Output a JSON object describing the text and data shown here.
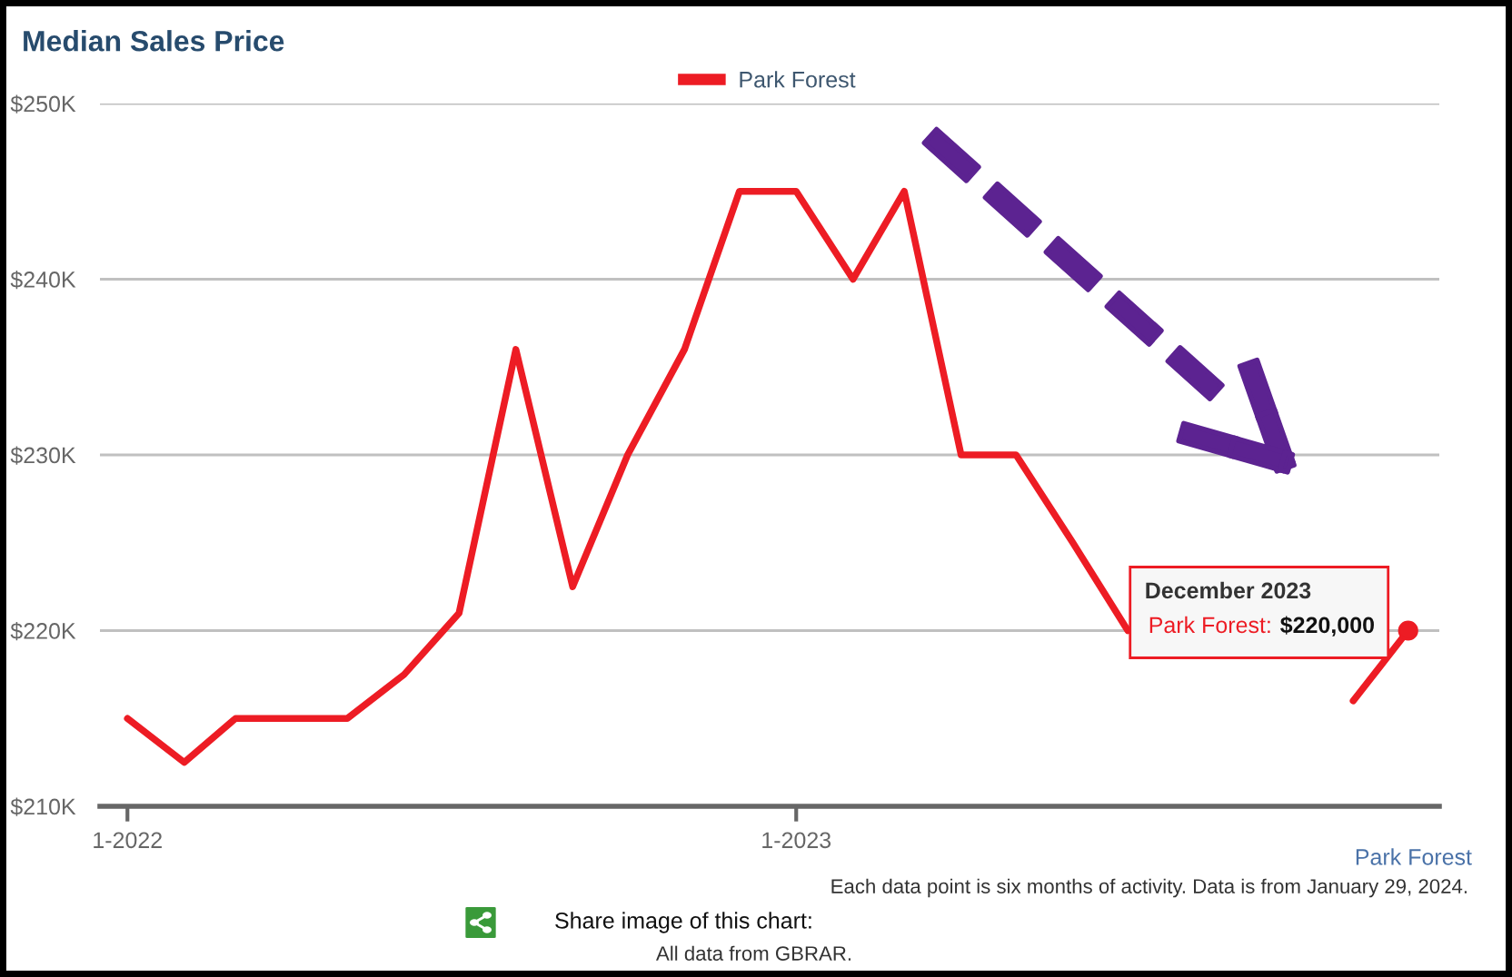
{
  "chart_data": {
    "type": "line",
    "title": "Median Sales Price",
    "x": [
      "2022-01",
      "2022-02",
      "2022-03",
      "2022-04",
      "2022-05",
      "2022-06",
      "2022-07",
      "2022-08",
      "2022-09",
      "2022-10",
      "2022-11",
      "2022-12",
      "2023-01",
      "2023-02",
      "2023-03",
      "2023-04",
      "2023-05",
      "2023-06",
      "2023-07",
      "2023-08",
      "2023-09",
      "2023-10",
      "2023-11",
      "2023-12"
    ],
    "series": [
      {
        "name": "Park Forest",
        "color": "#ed1c24",
        "values": [
          215000,
          212500,
          215000,
          215000,
          215000,
          217500,
          221000,
          236000,
          222500,
          230000,
          236000,
          245000,
          245000,
          240000,
          245000,
          230000,
          230000,
          225000,
          220000,
          null,
          null,
          null,
          216000,
          220000
        ]
      }
    ],
    "xlim": [
      "2021-12-17",
      "2023-12-18"
    ],
    "xticks": [
      {
        "value": "2022-01",
        "label": "1-2022"
      },
      {
        "value": "2023-01",
        "label": "1-2023"
      }
    ],
    "ylim": [
      210000,
      250000
    ],
    "yticks": [
      {
        "value": 210000,
        "label": "$210K"
      },
      {
        "value": 220000,
        "label": "$220K"
      },
      {
        "value": 230000,
        "label": "$230K"
      },
      {
        "value": 240000,
        "label": "$240K"
      },
      {
        "value": 250000,
        "label": "$250K"
      }
    ],
    "grid": "y",
    "legend": "top",
    "line_style": "solid",
    "annotations": [
      {
        "text": "December 2023\nPark Forest: $220,000",
        "x": "2023-12",
        "y": 220000
      },
      "Park Forest",
      "Each data point is six months of activity. Data is from January 29, 2024.",
      "Share image of this chart:",
      "All data from GBRAR."
    ]
  }
}
